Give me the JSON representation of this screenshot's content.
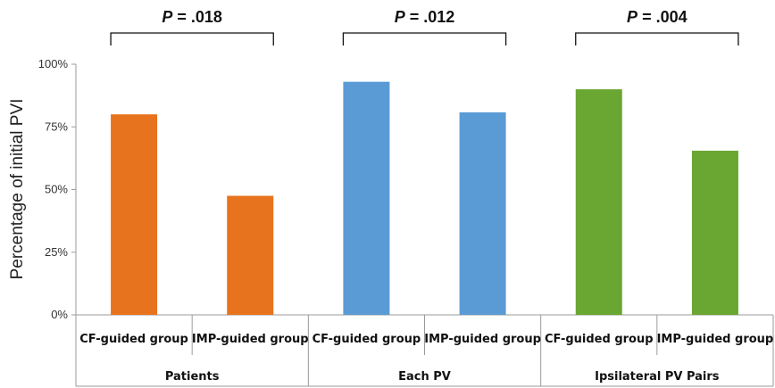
{
  "chart_data": {
    "type": "bar",
    "ylabel": "Percentage of initial PVI",
    "ylim": [
      0,
      100
    ],
    "yticks": [
      0,
      25,
      50,
      75,
      100
    ],
    "ytick_labels": [
      "0%",
      "25%",
      "50%",
      "75%",
      "100%"
    ],
    "grid": false,
    "legend": "none",
    "groups": [
      {
        "label": "Patients",
        "color": "#E8731E",
        "categories": [
          "CF-guided group",
          "IMP-guided group"
        ],
        "values": [
          80,
          47.5
        ],
        "p_value": "P = .018"
      },
      {
        "label": "Each PV",
        "color": "#5B9BD5",
        "categories": [
          "CF-guided group",
          "IMP-guided group"
        ],
        "values": [
          93,
          80.8
        ],
        "p_value": "P = .012"
      },
      {
        "label": "Ipsilateral PV Pairs",
        "color": "#6AA632",
        "categories": [
          "CF-guided group",
          "IMP-guided group"
        ],
        "values": [
          90,
          65.5
        ],
        "p_value": "P = .004"
      }
    ]
  }
}
